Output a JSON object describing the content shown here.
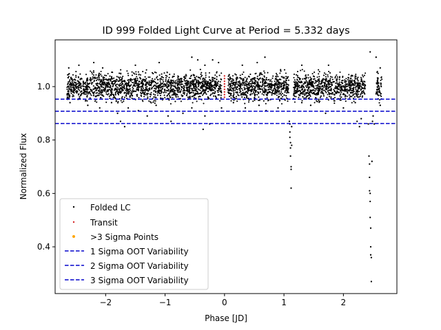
{
  "chart_data": {
    "type": "scatter",
    "title": "ID 999 Folded Light Curve at Period = 5.332 days",
    "xlabel": "Phase [JD]",
    "ylabel": "Normalized Flux",
    "xlim": [
      -2.85,
      2.9
    ],
    "ylim": [
      0.225,
      1.175
    ],
    "xticks": [
      -2,
      -1,
      0,
      1,
      2
    ],
    "yticks": [
      0.4,
      0.6,
      0.8,
      1.0
    ],
    "xtick_labels": [
      "−2",
      "−1",
      "0",
      "1",
      "2"
    ],
    "ytick_labels": [
      "0.4",
      "0.6",
      "0.8",
      "1.0"
    ],
    "grid": false,
    "legend_placement": "lower-left",
    "colors": {
      "folded_lc": "#000000",
      "transit": "#d62728",
      "sigma3_points": "#ffa500",
      "sigma_lines": "#0000cc"
    },
    "series": [
      {
        "name": "Folded LC",
        "kind": "scatter",
        "summary_bands": [
          {
            "x_range": [
              -2.65,
              -0.05
            ],
            "center": 1.0,
            "spread": 0.025
          },
          {
            "x_range": [
              0.05,
              1.08
            ],
            "center": 1.0,
            "spread": 0.025
          },
          {
            "x_range": [
              1.16,
              2.37
            ],
            "center": 1.0,
            "spread": 0.025
          },
          {
            "x_range": [
              2.55,
              2.65
            ],
            "center": 1.0,
            "spread": 0.025
          }
        ],
        "points": [
          [
            -2.62,
            1.07
          ],
          [
            -2.45,
            1.08
          ],
          [
            -2.2,
            1.09
          ],
          [
            -2.05,
            1.07
          ],
          [
            -1.5,
            1.08
          ],
          [
            -1.1,
            1.09
          ],
          [
            -0.55,
            1.11
          ],
          [
            -0.45,
            1.1
          ],
          [
            -0.33,
            1.08
          ],
          [
            -0.2,
            1.1
          ],
          [
            -0.1,
            1.09
          ],
          [
            0.3,
            1.08
          ],
          [
            0.55,
            1.09
          ],
          [
            0.68,
            1.11
          ],
          [
            1.3,
            1.08
          ],
          [
            1.75,
            1.08
          ],
          [
            2.45,
            1.13
          ],
          [
            2.55,
            1.11
          ],
          [
            2.62,
            1.07
          ],
          [
            -2.6,
            0.94
          ],
          [
            -2.3,
            0.93
          ],
          [
            -2.1,
            0.92
          ],
          [
            -1.9,
            0.94
          ],
          [
            -1.8,
            0.9
          ],
          [
            -1.75,
            0.87
          ],
          [
            -1.68,
            0.85
          ],
          [
            -1.62,
            0.92
          ],
          [
            -1.45,
            0.91
          ],
          [
            -1.3,
            0.89
          ],
          [
            -1.15,
            0.93
          ],
          [
            -0.95,
            0.89
          ],
          [
            -0.9,
            0.87
          ],
          [
            -0.7,
            0.9
          ],
          [
            -0.55,
            0.92
          ],
          [
            -0.36,
            0.84
          ],
          [
            -0.33,
            0.89
          ],
          [
            -0.25,
            0.86
          ],
          [
            -0.05,
            0.92
          ],
          [
            0.15,
            0.94
          ],
          [
            0.35,
            0.92
          ],
          [
            0.58,
            0.93
          ],
          [
            0.7,
            0.91
          ],
          [
            0.9,
            0.92
          ],
          [
            1.3,
            0.94
          ],
          [
            1.45,
            0.93
          ],
          [
            1.7,
            0.9
          ],
          [
            2.0,
            0.92
          ],
          [
            2.2,
            0.94
          ],
          [
            2.23,
            0.87
          ],
          [
            2.27,
            0.85
          ],
          [
            2.3,
            0.88
          ],
          [
            2.62,
            0.93
          ],
          [
            1.09,
            0.87
          ],
          [
            1.1,
            0.86
          ],
          [
            1.1,
            0.83
          ],
          [
            1.1,
            0.81
          ],
          [
            1.11,
            0.79
          ],
          [
            1.11,
            0.77
          ],
          [
            1.11,
            0.74
          ],
          [
            1.12,
            0.7
          ],
          [
            1.12,
            0.69
          ],
          [
            1.12,
            0.62
          ],
          [
            1.13,
            0.78
          ],
          [
            1.13,
            0.85
          ],
          [
            2.42,
            0.86
          ],
          [
            2.43,
            0.74
          ],
          [
            2.44,
            0.71
          ],
          [
            2.44,
            0.66
          ],
          [
            2.44,
            0.61
          ],
          [
            2.45,
            0.6
          ],
          [
            2.45,
            0.57
          ],
          [
            2.45,
            0.51
          ],
          [
            2.46,
            0.47
          ],
          [
            2.46,
            0.4
          ],
          [
            2.46,
            0.37
          ],
          [
            2.47,
            0.36
          ],
          [
            2.47,
            0.27
          ],
          [
            2.48,
            0.72
          ],
          [
            2.49,
            0.87
          ],
          [
            2.5,
            0.89
          ],
          [
            2.52,
            0.86
          ]
        ]
      },
      {
        "name": "Transit",
        "kind": "scatter",
        "points": [
          [
            0.0,
            0.96
          ],
          [
            0.0,
            0.97
          ],
          [
            0.0,
            0.98
          ],
          [
            0.0,
            0.99
          ],
          [
            0.0,
            1.0
          ],
          [
            0.0,
            1.01
          ],
          [
            0.0,
            1.02
          ],
          [
            0.0,
            1.03
          ],
          [
            0.0,
            1.04
          ]
        ]
      },
      {
        "name": ">3 Sigma Points",
        "kind": "scatter",
        "points": []
      },
      {
        "name": "1 Sigma OOT Variability",
        "kind": "hline",
        "y": 0.953
      },
      {
        "name": "2 Sigma OOT Variability",
        "kind": "hline",
        "y": 0.908
      },
      {
        "name": "3 Sigma OOT Variability",
        "kind": "hline",
        "y": 0.862
      }
    ]
  }
}
